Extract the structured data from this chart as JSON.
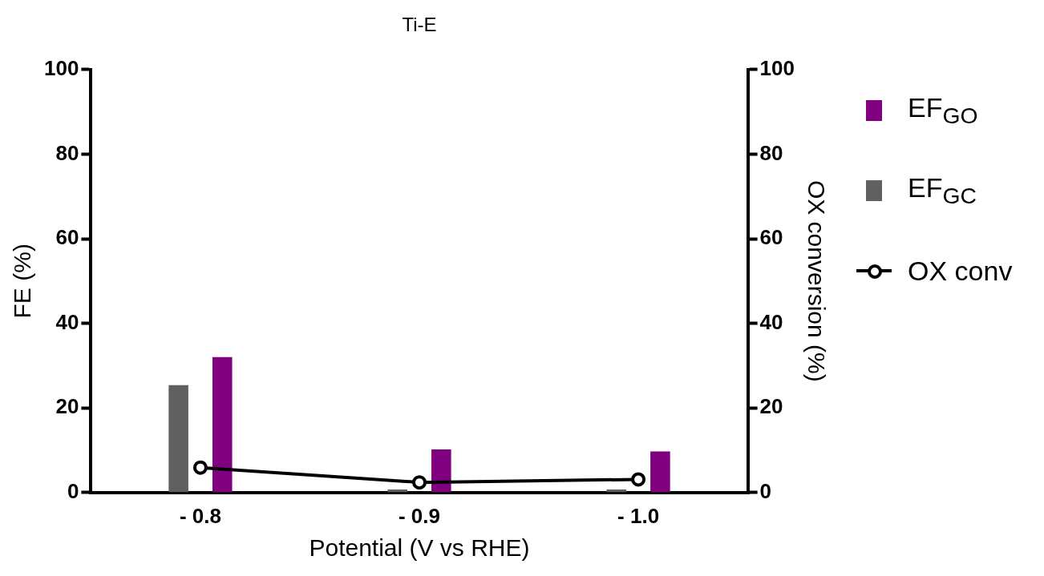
{
  "chart_data": {
    "type": "bar",
    "title": "Ti-E",
    "xlabel": "Potential (V vs RHE)",
    "ylabel": "FE (%)",
    "y2label": "OX conversion (%)",
    "categories": [
      "- 0.8",
      "- 0.9",
      "- 1.0"
    ],
    "series": [
      {
        "name": "EF$_{GC}$",
        "color": "#606060",
        "values": [
          25.4,
          0.7,
          0.7
        ]
      },
      {
        "name": "EF$_{GO}$",
        "color": "#800080",
        "values": [
          32,
          10.2,
          9.7
        ]
      },
      {
        "name": "OX conv",
        "type": "line",
        "axis": "y2",
        "color": "#000000",
        "values": [
          5.9,
          2.4,
          3.1
        ],
        "marker": "circle"
      }
    ],
    "ylim": [
      0,
      100
    ],
    "yticks": [
      0,
      20,
      40,
      60,
      80,
      100
    ],
    "y2lim": [
      0,
      100
    ],
    "y2ticks": [
      0,
      20,
      40,
      60,
      80,
      100
    ],
    "grid": false,
    "legend": "right"
  }
}
